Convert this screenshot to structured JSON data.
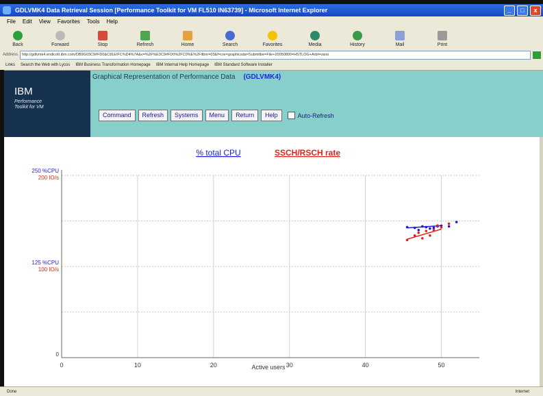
{
  "window": {
    "title": "GDLVMK4 Data Retrieval Session [Performance Toolkit for VM FL510 IN63739] - Microsoft Internet Explorer"
  },
  "menu": [
    "File",
    "Edit",
    "View",
    "Favorites",
    "Tools",
    "Help"
  ],
  "toolbar": [
    "Back",
    "Forward",
    "Stop",
    "Refresh",
    "Home",
    "Search",
    "Favorites",
    "Media",
    "History",
    "Mail",
    "Print"
  ],
  "address": {
    "label": "Address",
    "url": "http://gdlvmk4.endicott.ibm.com/DB9G03C9#FD0&C81E/FC%D4%7A&v=%2F%E3C9#FD0%2FC0%E%2Fitbnr=03&f=cre=graphicsda=Submitbe=File+20050800=HSTLOG+Arbl=varai"
  },
  "links": [
    "Links",
    "Search the Web with Lycos",
    "IBM Business Transformation Homepage",
    "IBM Internal Help Homepage",
    "IBM Standard Software Installer"
  ],
  "banner": {
    "logo": "IBM",
    "logo_sub1": "Performance",
    "logo_sub2": "Toolkit for VM",
    "title": "Graphical Representation of Performance Data",
    "system": "(GDLVMK4)",
    "buttons": [
      "Command",
      "Refresh",
      "Systems",
      "Menu",
      "Return",
      "Help"
    ],
    "auto_refresh": "Auto-Refresh"
  },
  "status": {
    "left": "Done",
    "right": "Internet"
  },
  "colors": {
    "cpu": "#1a1ae0",
    "ssch": "#e0221c"
  },
  "chart_data": {
    "type": "scatter",
    "legend": [
      "% total CPU",
      "SSCH/RSCH rate"
    ],
    "xlabel": "Active users",
    "x_ticks": [
      "0",
      "10",
      "20",
      "30",
      "40",
      "50"
    ],
    "xlim": [
      0,
      55
    ],
    "y_labels_cpu": [
      "250 %CPU",
      "125 %CPU"
    ],
    "y_labels_ssch": [
      "200 IO/s",
      "100 IO/s"
    ],
    "y_zero": "0",
    "series": [
      {
        "name": "% total CPU",
        "ylim": [
          0,
          250
        ],
        "points": [
          [
            45.5,
            179
          ],
          [
            46.5,
            178
          ],
          [
            47.0,
            175
          ],
          [
            47.5,
            180
          ],
          [
            48.0,
            179
          ],
          [
            48.5,
            177
          ],
          [
            49.0,
            178
          ],
          [
            49.5,
            180
          ],
          [
            50.0,
            181
          ],
          [
            51.0,
            180
          ],
          [
            52.0,
            186
          ]
        ],
        "trend": [
          [
            45.5,
            178
          ],
          [
            50.0,
            181
          ]
        ]
      },
      {
        "name": "SSCH/RSCH rate",
        "ylim": [
          0,
          200
        ],
        "points": [
          [
            45.5,
            129
          ],
          [
            46.5,
            134
          ],
          [
            47.0,
            137
          ],
          [
            47.5,
            131
          ],
          [
            48.0,
            139
          ],
          [
            48.5,
            134
          ],
          [
            49.0,
            140
          ],
          [
            49.5,
            145
          ],
          [
            50.0,
            143
          ],
          [
            51.0,
            147
          ]
        ],
        "trend": [
          [
            45.5,
            130
          ],
          [
            50.0,
            141
          ]
        ]
      }
    ]
  }
}
